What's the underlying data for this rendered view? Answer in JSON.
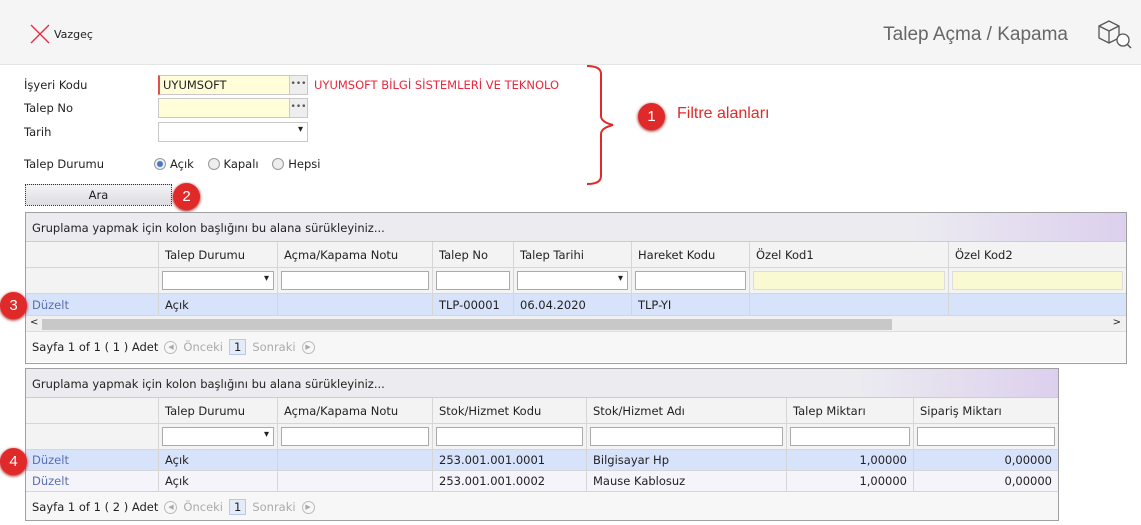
{
  "header": {
    "cancel_label": "Vazgeç",
    "title": "Talep Açma / Kapama",
    "icon": "box-search-icon"
  },
  "form": {
    "isyeri_label": "İşyeri Kodu",
    "isyeri_value": "UYUMSOFT",
    "isyeri_desc": "UYUMSOFT BİLGİ SİSTEMLERİ VE TEKNOLO",
    "talep_no_label": "Talep No",
    "talep_no_value": "",
    "tarih_label": "Tarih",
    "tarih_value": "",
    "durum_label": "Talep Durumu",
    "durum_options": [
      "Açık",
      "Kapalı",
      "Hepsi"
    ],
    "durum_selected": "Açık",
    "search_label": "Ara"
  },
  "annotations": {
    "b1": "1",
    "b1_text": "Filtre alanları",
    "b2": "2",
    "b3": "3",
    "b4": "4"
  },
  "grid1": {
    "group_text": "Gruplama yapmak için kolon başlığını bu alana sürükleyiniz...",
    "columns": [
      "",
      "Talep Durumu",
      "Açma/Kapama Notu",
      "Talep No",
      "Talep Tarihi",
      "Hareket Kodu",
      "Özel Kod1",
      "Özel Kod2"
    ],
    "rows": [
      [
        "Düzelt",
        "Açık",
        "",
        "TLP-00001",
        "06.04.2020",
        "TLP-YI",
        "",
        ""
      ]
    ],
    "pager": {
      "info": "Sayfa 1 of 1 ( 1 ) Adet",
      "prev": "Önceki",
      "page": "1",
      "next": "Sonraki"
    }
  },
  "grid2": {
    "group_text": "Gruplama yapmak için kolon başlığını bu alana sürükleyiniz...",
    "columns": [
      "",
      "Talep Durumu",
      "Açma/Kapama Notu",
      "Stok/Hizmet Kodu",
      "Stok/Hizmet Adı",
      "Talep Miktarı",
      "Sipariş Miktarı"
    ],
    "rows": [
      [
        "Düzelt",
        "Açık",
        "",
        "253.001.001.0001",
        "Bilgisayar Hp",
        "1,00000",
        "0,00000"
      ],
      [
        "Düzelt",
        "Açık",
        "",
        "253.001.001.0002",
        "Mause Kablosuz",
        "1,00000",
        "0,00000"
      ]
    ],
    "pager": {
      "info": "Sayfa 1 of 1 ( 2 ) Adet",
      "prev": "Önceki",
      "page": "1",
      "next": "Sonraki"
    }
  },
  "colors": {
    "accent_red": "#e02a2a",
    "selected_row": "#d7e3fb"
  }
}
